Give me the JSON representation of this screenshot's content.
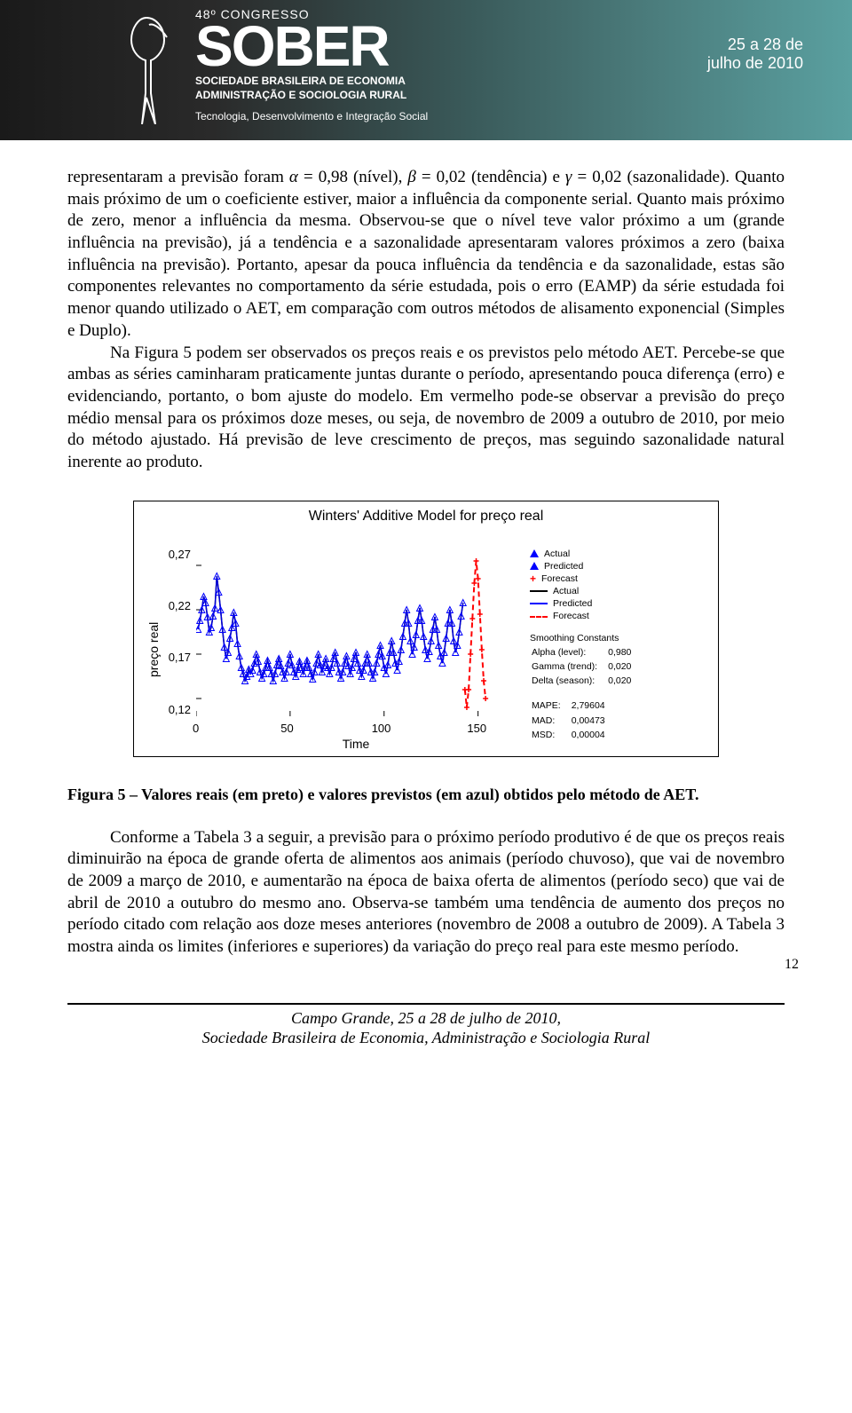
{
  "banner": {
    "congresso_line": "48º CONGRESSO",
    "logo_text": "SOBER",
    "subtitle_line1": "SOCIEDADE BRASILEIRA DE ECONOMIA",
    "subtitle_line2": "ADMINISTRAÇÃO E SOCIOLOGIA RURAL",
    "tagline": "Tecnologia, Desenvolvimento e Integração Social",
    "date_line1": "25 a 28 de",
    "date_line2": "julho de 2010"
  },
  "paragraphs": {
    "p1_a": "representaram a previsão foram ",
    "alpha": "α",
    "p1_b": " = 0,98 (nível),  ",
    "beta": "β",
    "p1_c": " = 0,02 (tendência) e ",
    "gamma": "γ",
    "p1_d": " = 0,02 (sazonalidade). Quanto mais próximo de um o coeficiente estiver, maior a influência da componente serial. Quanto mais próximo de zero, menor a influência da mesma. Observou-se que o nível teve valor próximo a um (grande influência na previsão), já a tendência e a sazonalidade apresentaram valores próximos a zero (baixa influência na previsão). Portanto, apesar da pouca influência da tendência e da sazonalidade, estas são componentes relevantes no comportamento da série estudada, pois o erro (EAMP) da série estudada foi menor quando utilizado o AET, em comparação com outros métodos de alisamento exponencial (Simples e Duplo).",
    "p2": "Na Figura 5 podem ser observados os preços reais e os previstos pelo método AET. Percebe-se que ambas as séries caminharam praticamente juntas durante o período, apresentando pouca diferença (erro) e evidenciando, portanto, o bom ajuste do modelo. Em vermelho pode-se observar a previsão do preço médio mensal para os próximos doze meses, ou seja, de novembro de 2009 a outubro de 2010, por meio do método ajustado. Há previsão de leve crescimento de preços, mas seguindo sazonalidade natural inerente ao produto.",
    "p3": "Conforme a Tabela 3 a seguir, a previsão para o próximo período produtivo é de que os preços reais diminuirão na época de grande oferta de alimentos aos animais (período chuvoso), que vai de novembro de 2009 a março de 2010, e aumentarão na época de baixa oferta de alimentos (período seco) que vai de abril de 2010 a outubro do mesmo ano. Observa-se também uma tendência de aumento dos preços no período citado com relação aos doze meses anteriores (novembro de 2008 a outubro de 2009). A Tabela 3 mostra ainda os limites (inferiores e superiores) da variação do preço real para este mesmo período."
  },
  "chart": {
    "title": "Winters' Additive Model for preço real",
    "ylabel": "preço real",
    "xlabel": "Time",
    "ylim": [
      0.1,
      0.29
    ],
    "yticks": [
      "0,27",
      "0,22",
      "0,17",
      "0,12"
    ],
    "ytick_vals": [
      0.27,
      0.22,
      0.17,
      0.12
    ],
    "xlim": [
      0,
      170
    ],
    "xticks": [
      "0",
      "50",
      "100",
      "150"
    ],
    "xtick_vals": [
      0,
      50,
      100,
      150
    ],
    "colors": {
      "actual_line": "#000000",
      "predicted_line": "#0000ff",
      "predicted_marker": "#0000ff",
      "forecast_line": "#ff0000",
      "forecast_marker": "#ff0000",
      "background": "#ffffff",
      "axis": "#000000"
    },
    "line_width": 1.5,
    "marker_size": 3.5,
    "series_actual": [
      [
        1,
        0.198
      ],
      [
        2,
        0.208
      ],
      [
        3,
        0.22
      ],
      [
        4,
        0.235
      ],
      [
        5,
        0.228
      ],
      [
        6,
        0.212
      ],
      [
        7,
        0.195
      ],
      [
        8,
        0.2
      ],
      [
        9,
        0.213
      ],
      [
        10,
        0.222
      ],
      [
        11,
        0.258
      ],
      [
        12,
        0.24
      ],
      [
        13,
        0.22
      ],
      [
        14,
        0.198
      ],
      [
        15,
        0.178
      ],
      [
        16,
        0.165
      ],
      [
        17,
        0.172
      ],
      [
        18,
        0.188
      ],
      [
        19,
        0.2
      ],
      [
        20,
        0.217
      ],
      [
        21,
        0.205
      ],
      [
        22,
        0.182
      ],
      [
        23,
        0.168
      ],
      [
        24,
        0.155
      ],
      [
        25,
        0.148
      ],
      [
        26,
        0.14
      ],
      [
        27,
        0.145
      ],
      [
        28,
        0.153
      ],
      [
        29,
        0.148
      ],
      [
        30,
        0.152
      ],
      [
        31,
        0.16
      ],
      [
        32,
        0.17
      ],
      [
        33,
        0.162
      ],
      [
        34,
        0.15
      ],
      [
        35,
        0.143
      ],
      [
        36,
        0.148
      ],
      [
        37,
        0.155
      ],
      [
        38,
        0.163
      ],
      [
        39,
        0.155
      ],
      [
        40,
        0.148
      ],
      [
        41,
        0.14
      ],
      [
        42,
        0.148
      ],
      [
        43,
        0.158
      ],
      [
        44,
        0.165
      ],
      [
        45,
        0.157
      ],
      [
        46,
        0.15
      ],
      [
        47,
        0.143
      ],
      [
        48,
        0.15
      ],
      [
        49,
        0.16
      ],
      [
        50,
        0.17
      ],
      [
        51,
        0.158
      ],
      [
        52,
        0.15
      ],
      [
        53,
        0.145
      ],
      [
        54,
        0.153
      ],
      [
        55,
        0.162
      ],
      [
        56,
        0.155
      ],
      [
        57,
        0.148
      ],
      [
        58,
        0.155
      ],
      [
        59,
        0.163
      ],
      [
        60,
        0.155
      ],
      [
        61,
        0.148
      ],
      [
        62,
        0.142
      ],
      [
        63,
        0.15
      ],
      [
        64,
        0.16
      ],
      [
        65,
        0.17
      ],
      [
        66,
        0.158
      ],
      [
        67,
        0.15
      ],
      [
        68,
        0.157
      ],
      [
        69,
        0.165
      ],
      [
        70,
        0.155
      ],
      [
        71,
        0.148
      ],
      [
        72,
        0.155
      ],
      [
        73,
        0.165
      ],
      [
        74,
        0.172
      ],
      [
        75,
        0.16
      ],
      [
        76,
        0.15
      ],
      [
        77,
        0.143
      ],
      [
        78,
        0.15
      ],
      [
        79,
        0.16
      ],
      [
        80,
        0.168
      ],
      [
        81,
        0.157
      ],
      [
        82,
        0.148
      ],
      [
        83,
        0.155
      ],
      [
        84,
        0.165
      ],
      [
        85,
        0.172
      ],
      [
        86,
        0.16
      ],
      [
        87,
        0.152
      ],
      [
        88,
        0.145
      ],
      [
        89,
        0.152
      ],
      [
        90,
        0.16
      ],
      [
        91,
        0.17
      ],
      [
        92,
        0.16
      ],
      [
        93,
        0.15
      ],
      [
        94,
        0.143
      ],
      [
        95,
        0.15
      ],
      [
        96,
        0.16
      ],
      [
        97,
        0.17
      ],
      [
        98,
        0.18
      ],
      [
        99,
        0.168
      ],
      [
        100,
        0.155
      ],
      [
        101,
        0.148
      ],
      [
        102,
        0.158
      ],
      [
        103,
        0.172
      ],
      [
        104,
        0.185
      ],
      [
        105,
        0.172
      ],
      [
        106,
        0.16
      ],
      [
        107,
        0.152
      ],
      [
        108,
        0.162
      ],
      [
        109,
        0.175
      ],
      [
        110,
        0.19
      ],
      [
        111,
        0.205
      ],
      [
        112,
        0.22
      ],
      [
        113,
        0.205
      ],
      [
        114,
        0.185
      ],
      [
        115,
        0.17
      ],
      [
        116,
        0.178
      ],
      [
        117,
        0.192
      ],
      [
        118,
        0.208
      ],
      [
        119,
        0.222
      ],
      [
        120,
        0.208
      ],
      [
        121,
        0.19
      ],
      [
        122,
        0.175
      ],
      [
        123,
        0.165
      ],
      [
        124,
        0.173
      ],
      [
        125,
        0.185
      ],
      [
        126,
        0.198
      ],
      [
        127,
        0.212
      ],
      [
        128,
        0.198
      ],
      [
        129,
        0.18
      ],
      [
        130,
        0.168
      ],
      [
        131,
        0.16
      ],
      [
        132,
        0.172
      ],
      [
        133,
        0.188
      ],
      [
        134,
        0.205
      ],
      [
        135,
        0.22
      ],
      [
        136,
        0.205
      ],
      [
        137,
        0.185
      ],
      [
        138,
        0.172
      ],
      [
        139,
        0.18
      ],
      [
        140,
        0.195
      ],
      [
        141,
        0.213
      ],
      [
        142,
        0.228
      ]
    ],
    "series_forecast": [
      [
        143,
        0.13
      ],
      [
        144,
        0.11
      ],
      [
        145,
        0.13
      ],
      [
        146,
        0.17
      ],
      [
        147,
        0.21
      ],
      [
        148,
        0.25
      ],
      [
        149,
        0.275
      ],
      [
        150,
        0.255
      ],
      [
        151,
        0.215
      ],
      [
        152,
        0.175
      ],
      [
        153,
        0.14
      ],
      [
        154,
        0.12
      ]
    ],
    "legend": {
      "items": [
        {
          "label": "Actual",
          "marker": "triangle",
          "color": "#0000ff"
        },
        {
          "label": "Predicted",
          "marker": "triangle",
          "color": "#0000ff"
        },
        {
          "label": "Forecast",
          "marker": "cross",
          "color": "#ff0000"
        },
        {
          "label": "Actual",
          "marker": "line",
          "color": "#000000"
        },
        {
          "label": "Predicted",
          "marker": "line",
          "color": "#0000ff"
        },
        {
          "label": "Forecast",
          "marker": "dash",
          "color": "#ff0000"
        }
      ],
      "constants_title": "Smoothing Constants",
      "alpha_lbl": "Alpha (level):",
      "alpha_val": "0,980",
      "gamma_lbl": "Gamma (trend):",
      "gamma_val": "0,020",
      "delta_lbl": "Delta (season):",
      "delta_val": "0,020",
      "mape_lbl": "MAPE:",
      "mape_val": "2,79604",
      "mad_lbl": "MAD:",
      "mad_val": "0,00473",
      "msd_lbl": "MSD:",
      "msd_val": "0,00004"
    }
  },
  "figure_caption": "Figura 5 – Valores reais (em preto) e valores previstos (em azul) obtidos pelo método de AET.",
  "footer": {
    "line1": "Campo Grande, 25 a 28 de julho de 2010,",
    "line2": "Sociedade Brasileira de Economia, Administração e Sociologia Rural"
  },
  "page_number": "12"
}
